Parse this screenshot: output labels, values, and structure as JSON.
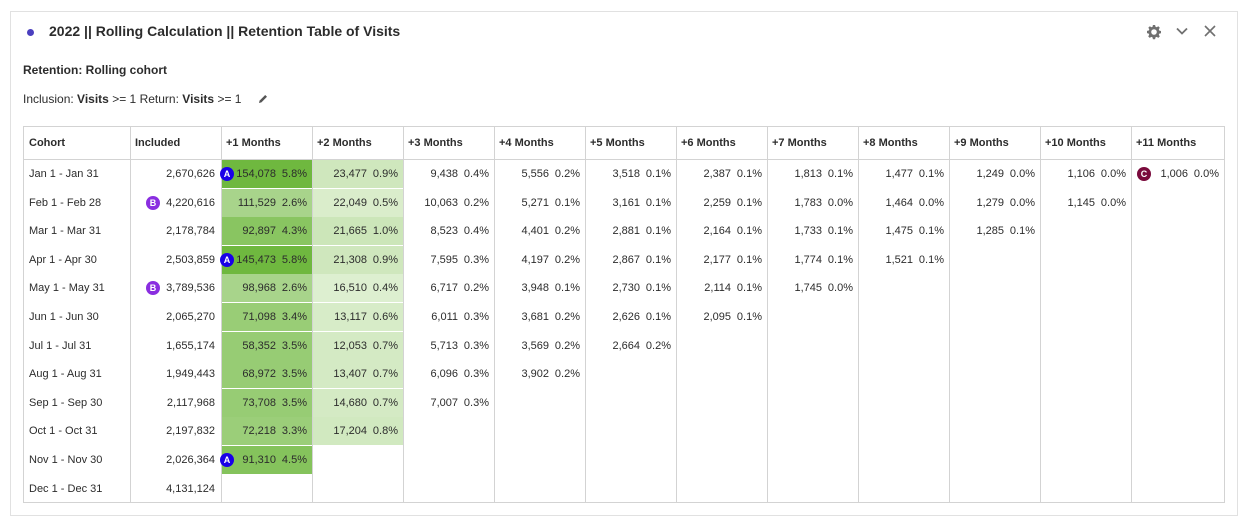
{
  "panel": {
    "title": "2022 || Rolling Calculation || Retention Table of Visits",
    "subtitle": "Retention: Rolling cohort",
    "inclusion_label": "Inclusion:",
    "inclusion_metric": "Visits",
    "inclusion_op": ">= 1",
    "return_label": "Return:",
    "return_metric": "Visits",
    "return_op": ">= 1",
    "controls": [
      "gear-icon",
      "chevron-down-icon",
      "close-icon"
    ]
  },
  "colors": {
    "accent_dot": "#4b3fbf",
    "badge_a": "#1a00e8",
    "badge_b": "#8a2ee0",
    "badge_c": "#7a0a3c",
    "heat_max": "#6fb83f",
    "heat_min": "#eef7e6"
  },
  "table": {
    "headers": [
      "Cohort",
      "Included",
      "+1 Months",
      "+2 Months",
      "+3 Months",
      "+4 Months",
      "+5 Months",
      "+6 Months",
      "+7 Months",
      "+8 Months",
      "+9 Months",
      "+10 Months",
      "+11 Months"
    ],
    "rows": [
      {
        "cohort": "Jan 1 - Jan 31",
        "included": "2,670,626",
        "badge": "",
        "cells": [
          [
            "154,078",
            "5.8%",
            "A"
          ],
          [
            "23,477",
            "0.9%",
            ""
          ],
          [
            "9,438",
            "0.4%",
            ""
          ],
          [
            "5,556",
            "0.2%",
            ""
          ],
          [
            "3,518",
            "0.1%",
            ""
          ],
          [
            "2,387",
            "0.1%",
            ""
          ],
          [
            "1,813",
            "0.1%",
            ""
          ],
          [
            "1,477",
            "0.1%",
            ""
          ],
          [
            "1,249",
            "0.0%",
            ""
          ],
          [
            "1,106",
            "0.0%",
            ""
          ],
          [
            "1,006",
            "0.0%",
            "C"
          ]
        ]
      },
      {
        "cohort": "Feb 1 - Feb 28",
        "included": "4,220,616",
        "badge": "B",
        "cells": [
          [
            "111,529",
            "2.6%",
            ""
          ],
          [
            "22,049",
            "0.5%",
            ""
          ],
          [
            "10,063",
            "0.2%",
            ""
          ],
          [
            "5,271",
            "0.1%",
            ""
          ],
          [
            "3,161",
            "0.1%",
            ""
          ],
          [
            "2,259",
            "0.1%",
            ""
          ],
          [
            "1,783",
            "0.0%",
            ""
          ],
          [
            "1,464",
            "0.0%",
            ""
          ],
          [
            "1,279",
            "0.0%",
            ""
          ],
          [
            "1,145",
            "0.0%",
            ""
          ]
        ]
      },
      {
        "cohort": "Mar 1 - Mar 31",
        "included": "2,178,784",
        "badge": "",
        "cells": [
          [
            "92,897",
            "4.3%",
            ""
          ],
          [
            "21,665",
            "1.0%",
            ""
          ],
          [
            "8,523",
            "0.4%",
            ""
          ],
          [
            "4,401",
            "0.2%",
            ""
          ],
          [
            "2,881",
            "0.1%",
            ""
          ],
          [
            "2,164",
            "0.1%",
            ""
          ],
          [
            "1,733",
            "0.1%",
            ""
          ],
          [
            "1,475",
            "0.1%",
            ""
          ],
          [
            "1,285",
            "0.1%",
            ""
          ]
        ]
      },
      {
        "cohort": "Apr 1 - Apr 30",
        "included": "2,503,859",
        "badge": "",
        "cells": [
          [
            "145,473",
            "5.8%",
            "A"
          ],
          [
            "21,308",
            "0.9%",
            ""
          ],
          [
            "7,595",
            "0.3%",
            ""
          ],
          [
            "4,197",
            "0.2%",
            ""
          ],
          [
            "2,867",
            "0.1%",
            ""
          ],
          [
            "2,177",
            "0.1%",
            ""
          ],
          [
            "1,774",
            "0.1%",
            ""
          ],
          [
            "1,521",
            "0.1%",
            ""
          ]
        ]
      },
      {
        "cohort": "May 1 - May 31",
        "included": "3,789,536",
        "badge": "B",
        "cells": [
          [
            "98,968",
            "2.6%",
            ""
          ],
          [
            "16,510",
            "0.4%",
            ""
          ],
          [
            "6,717",
            "0.2%",
            ""
          ],
          [
            "3,948",
            "0.1%",
            ""
          ],
          [
            "2,730",
            "0.1%",
            ""
          ],
          [
            "2,114",
            "0.1%",
            ""
          ],
          [
            "1,745",
            "0.0%",
            ""
          ]
        ]
      },
      {
        "cohort": "Jun 1 - Jun 30",
        "included": "2,065,270",
        "badge": "",
        "cells": [
          [
            "71,098",
            "3.4%",
            ""
          ],
          [
            "13,117",
            "0.6%",
            ""
          ],
          [
            "6,011",
            "0.3%",
            ""
          ],
          [
            "3,681",
            "0.2%",
            ""
          ],
          [
            "2,626",
            "0.1%",
            ""
          ],
          [
            "2,095",
            "0.1%",
            ""
          ]
        ]
      },
      {
        "cohort": "Jul 1 - Jul 31",
        "included": "1,655,174",
        "badge": "",
        "cells": [
          [
            "58,352",
            "3.5%",
            ""
          ],
          [
            "12,053",
            "0.7%",
            ""
          ],
          [
            "5,713",
            "0.3%",
            ""
          ],
          [
            "3,569",
            "0.2%",
            ""
          ],
          [
            "2,664",
            "0.2%",
            ""
          ]
        ]
      },
      {
        "cohort": "Aug 1 - Aug 31",
        "included": "1,949,443",
        "badge": "",
        "cells": [
          [
            "68,972",
            "3.5%",
            ""
          ],
          [
            "13,407",
            "0.7%",
            ""
          ],
          [
            "6,096",
            "0.3%",
            ""
          ],
          [
            "3,902",
            "0.2%",
            ""
          ]
        ]
      },
      {
        "cohort": "Sep 1 - Sep 30",
        "included": "2,117,968",
        "badge": "",
        "cells": [
          [
            "73,708",
            "3.5%",
            ""
          ],
          [
            "14,680",
            "0.7%",
            ""
          ],
          [
            "7,007",
            "0.3%",
            ""
          ]
        ]
      },
      {
        "cohort": "Oct 1 - Oct 31",
        "included": "2,197,832",
        "badge": "",
        "cells": [
          [
            "72,218",
            "3.3%",
            ""
          ],
          [
            "17,204",
            "0.8%",
            ""
          ]
        ]
      },
      {
        "cohort": "Nov 1 - Nov 30",
        "included": "2,026,364",
        "badge": "",
        "cells": [
          [
            "91,310",
            "4.5%",
            "A"
          ]
        ]
      },
      {
        "cohort": "Dec 1 - Dec 31",
        "included": "4,131,124",
        "badge": "",
        "cells": []
      }
    ]
  }
}
